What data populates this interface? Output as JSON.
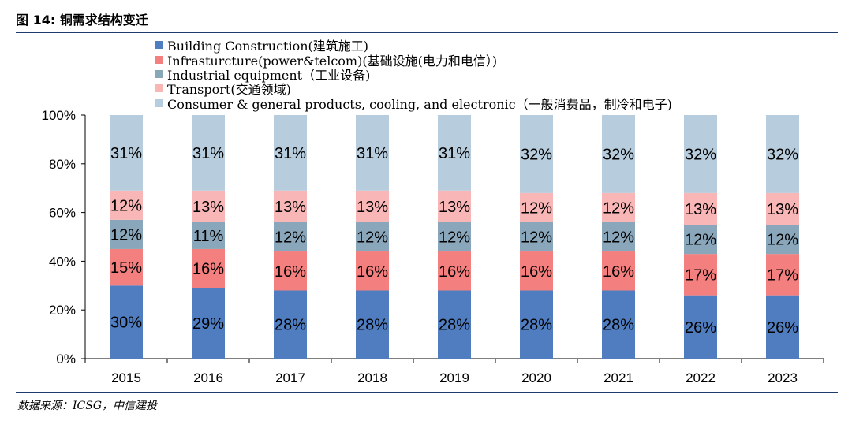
{
  "figure": {
    "title": "图 14: 铜需求结构变迁",
    "source": "数据来源：ICSG，中信建投"
  },
  "chart_data": {
    "type": "bar",
    "stacked": true,
    "percent": true,
    "categories": [
      "2015",
      "2016",
      "2017",
      "2018",
      "2019",
      "2020",
      "2021",
      "2022",
      "2023"
    ],
    "ylim": [
      0,
      100
    ],
    "yticks": [
      "0%",
      "20%",
      "40%",
      "60%",
      "80%",
      "100%"
    ],
    "grid": false,
    "legend_position": "top",
    "series": [
      {
        "name": "Building Construction(建筑施工)",
        "color": "#4f7dbf",
        "values": [
          30,
          29,
          28,
          28,
          28,
          28,
          28,
          26,
          26
        ]
      },
      {
        "name": "Infrasturcture(power&telcom)(基础设施(电力和电信）)",
        "color": "#f37f7f",
        "values": [
          15,
          16,
          16,
          16,
          16,
          16,
          16,
          17,
          17
        ]
      },
      {
        "name": "Industrial equipment（工业设备)",
        "color": "#8aa6ba",
        "values": [
          12,
          11,
          12,
          12,
          12,
          12,
          12,
          12,
          12
        ]
      },
      {
        "name": "Transport(交通领域)",
        "color": "#f8b6b6",
        "values": [
          12,
          13,
          13,
          13,
          13,
          12,
          12,
          13,
          13
        ]
      },
      {
        "name": "Consumer & general products, cooling, and electronic（一般消费品，制冷和电子)",
        "color": "#b7cddd",
        "values": [
          31,
          31,
          31,
          31,
          31,
          32,
          32,
          32,
          32
        ]
      }
    ]
  }
}
